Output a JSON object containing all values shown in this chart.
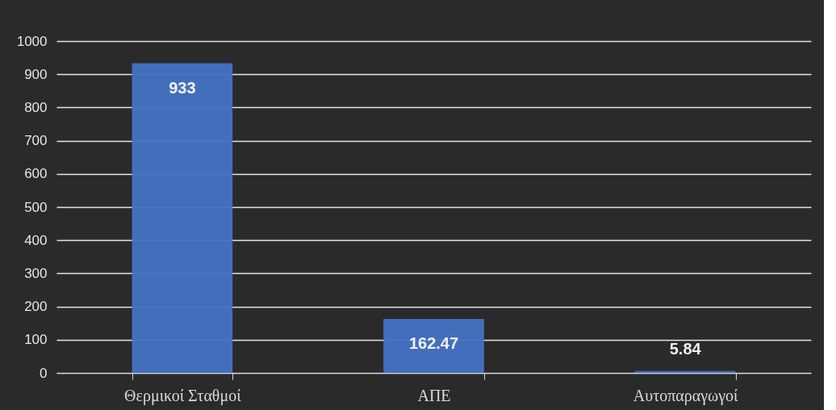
{
  "chart_data": {
    "type": "bar",
    "categories": [
      "Θερμικοί Σταθμοί",
      "ΑΠΕ",
      "Αυτοπαραγωγοί"
    ],
    "values": [
      933,
      162.47,
      5.84
    ],
    "color": "#4472c4",
    "ylim": [
      0,
      1000
    ],
    "yticks": [
      0,
      100,
      200,
      300,
      400,
      500,
      600,
      700,
      800,
      900,
      1000
    ],
    "grid": "y",
    "data_labels": true
  }
}
